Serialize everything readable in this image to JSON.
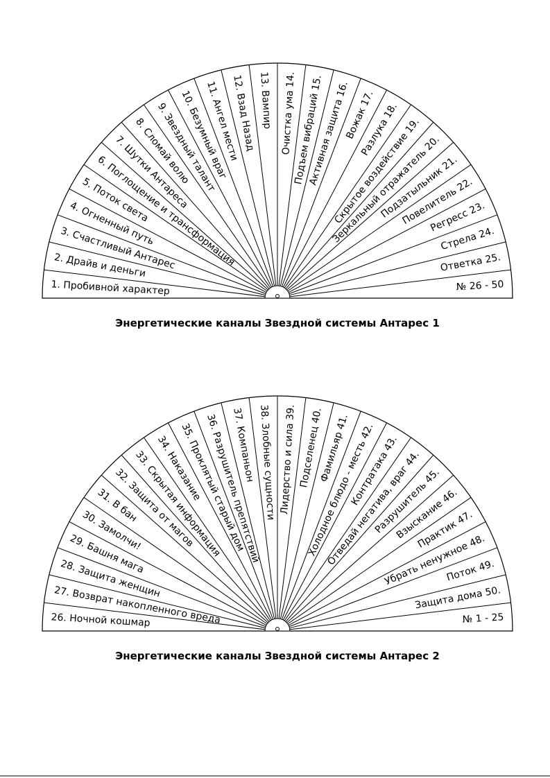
{
  "diagrams": [
    {
      "labels": [
        "1. Пробивной характер",
        "2. Драйв и деньги",
        "3. Счастливый Антарес",
        "4. Огненный путь",
        "5. Поток света",
        "6. Поглощение и трансформация",
        "7. Шутки Антареса",
        "8. Сломай волю",
        "9. Звездный талант",
        "10. Безумный враг",
        "11. Ангел мести",
        "12. Взад Назад",
        "13. Вампир",
        "Очистка ума  14.",
        "Подъем вибраций  15.",
        "Активная защита  16.",
        "Вожак  17.",
        "Разлука  18.",
        "Скрытое воздействие  19.",
        "Зеркальный отражатель  20.",
        "Подзатыльник  21.",
        "Повелитель 22.",
        "Регресс 23.",
        "Стрела  24.",
        "Ответка  25.",
        "№  26 - 50"
      ],
      "caption": "Энергетические каналы Звездной системы Антарес 1"
    },
    {
      "labels": [
        "26. Ночной кошмар",
        "27. Возврат накопленного вреда",
        "28. Защита женщин",
        "29. Башня мага",
        "30. Замолчи!",
        "31. В бан",
        "32. Защита от магов",
        "33. Скрытая информация",
        "34. Наказание",
        "35. Проклятый старый дом",
        "36. Разрушитель препятствий",
        "37. Компаньон",
        "38. Злобные сущности",
        "Лидерство и сила  39.",
        "Подселенец  40.",
        "Фамильяр  41.",
        "Холодное блюдо - месть  42.",
        "Контратака  43.",
        "Отведай негатива, враг  44.",
        "Разрушитель  45.",
        "Взыскание  46.",
        "Практик  47.",
        "Убрать ненужное  48.",
        "Поток  49.",
        "Защита дома  50.",
        "№  1 - 25"
      ],
      "caption": "Энергетические каналы Звездной системы Антарес 2"
    }
  ]
}
